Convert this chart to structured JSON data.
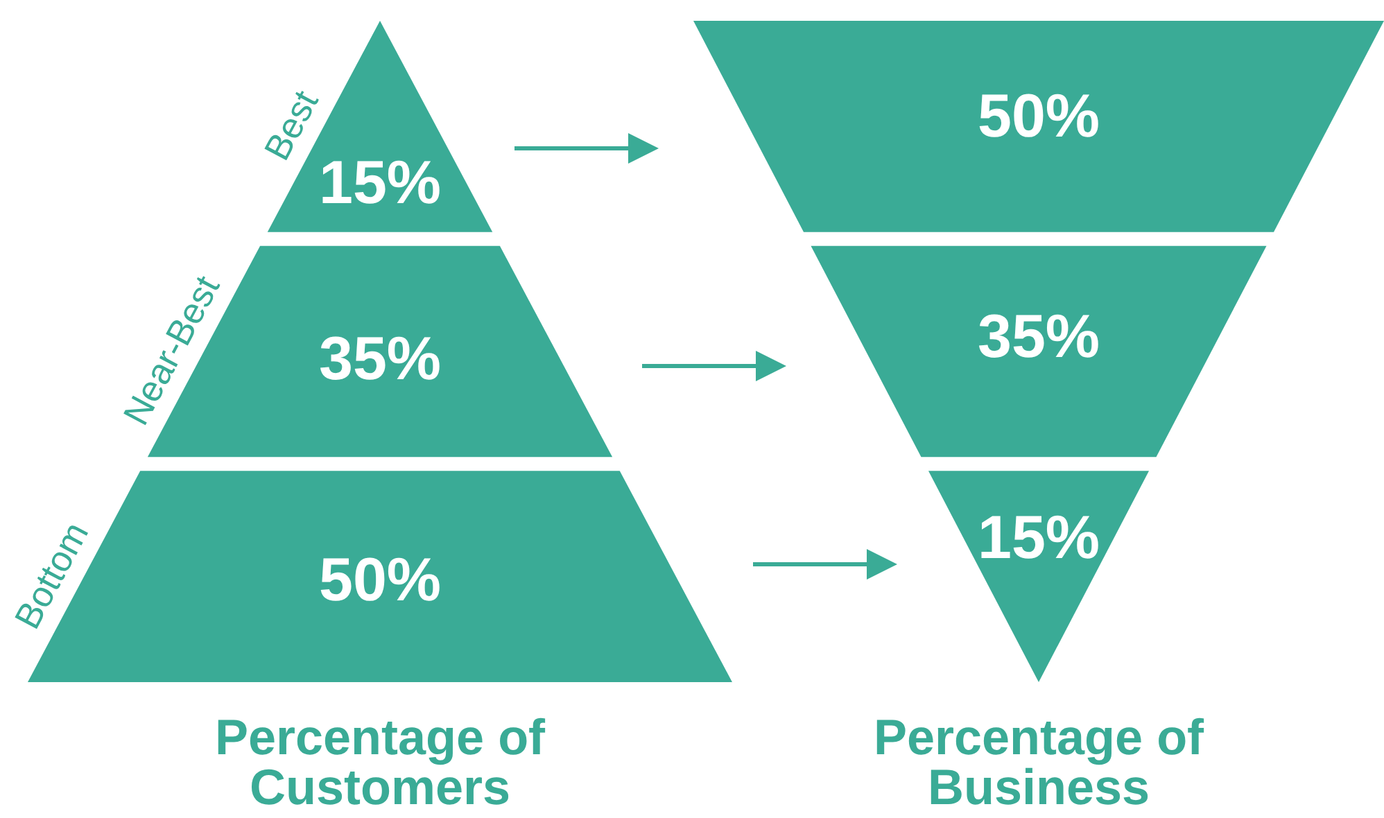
{
  "chart_data": [
    {
      "type": "other",
      "title": "Percentage of Customers",
      "categories": [
        "Best",
        "Near-Best",
        "Bottom"
      ],
      "values": [
        15,
        35,
        50
      ],
      "value_labels": [
        "15%",
        "35%",
        "50%"
      ],
      "color": "#3aab96"
    },
    {
      "type": "other",
      "title": "Percentage of Business",
      "categories": [
        null,
        null,
        null
      ],
      "values": [
        50,
        35,
        15
      ],
      "value_labels": [
        "50%",
        "35%",
        "15%"
      ],
      "color": "#3aab96"
    }
  ]
}
